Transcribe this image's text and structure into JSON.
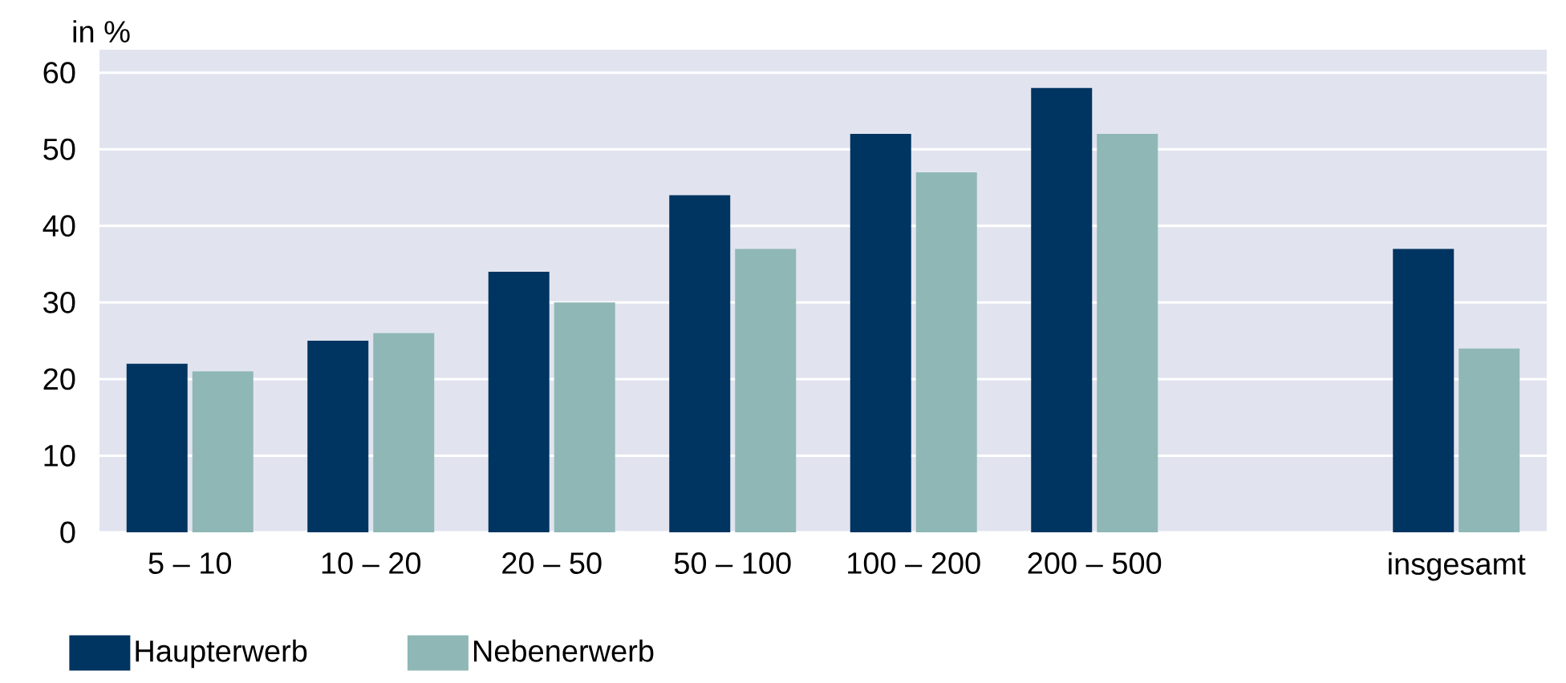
{
  "chart_data": {
    "type": "bar",
    "ylabel": "in %",
    "categories": [
      "5 – 10",
      "10 – 20",
      "20 – 50",
      "50 – 100",
      "100 – 200",
      "200 – 500",
      null,
      "insgesamt"
    ],
    "series": [
      {
        "name": "Haupterwerb",
        "color": "#003461",
        "values": [
          22,
          25,
          34,
          44,
          52,
          58,
          null,
          37
        ]
      },
      {
        "name": "Nebenerwerb",
        "color": "#8fb7b6",
        "values": [
          21,
          26,
          30,
          37,
          47,
          52,
          null,
          24
        ]
      }
    ],
    "ylim": [
      0,
      63
    ],
    "yticks": [
      0,
      10,
      20,
      30,
      40,
      50,
      60
    ],
    "grid": "y",
    "legend": "bottom left"
  }
}
